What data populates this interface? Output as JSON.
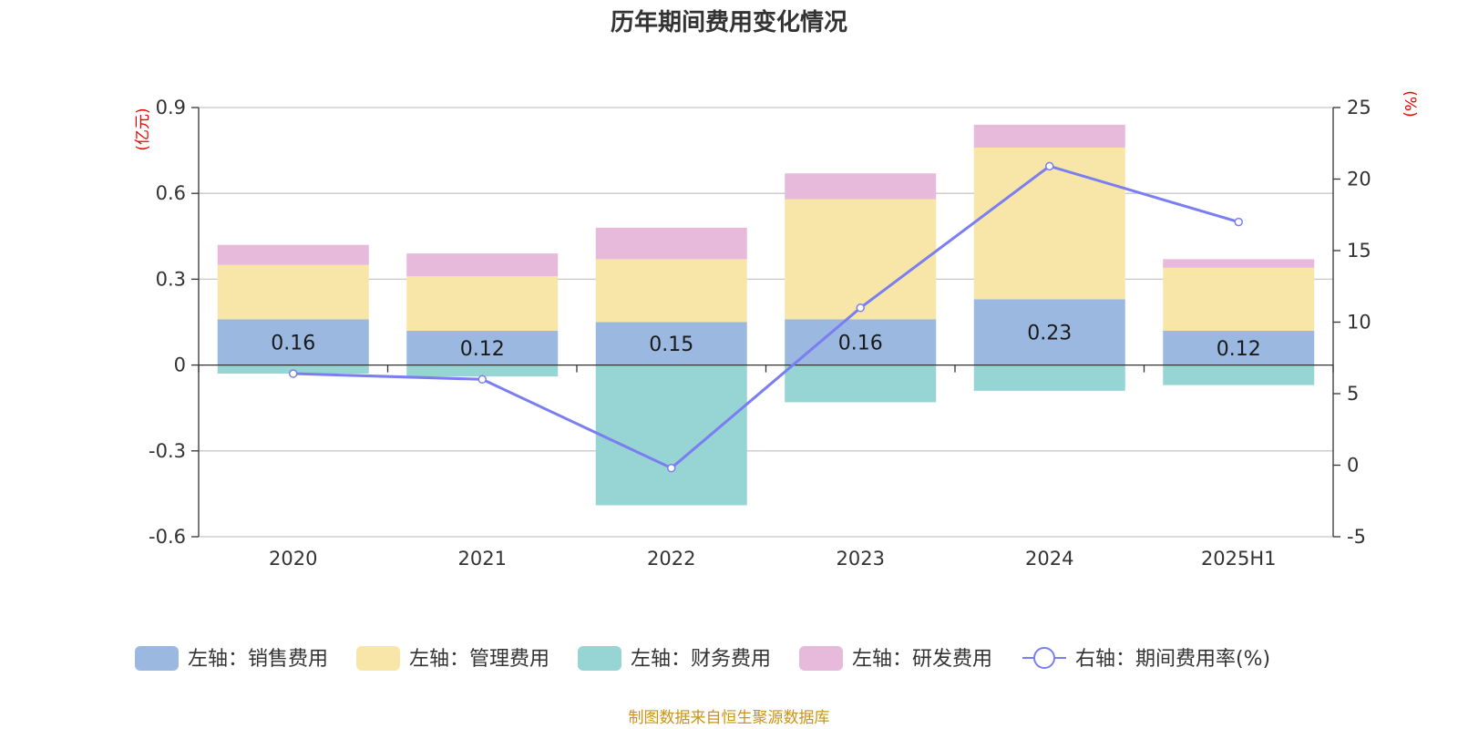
{
  "title": "历年期间费用变化情况",
  "source": "制图数据来自恒生聚源数据库",
  "chart_data": {
    "type": "bar",
    "stacked": true,
    "categories": [
      "2020",
      "2021",
      "2022",
      "2023",
      "2024",
      "2025H1"
    ],
    "left_axis": {
      "unit": "(亿元)",
      "min": -0.6,
      "max": 0.9,
      "ticks": [
        -0.6,
        -0.3,
        0,
        0.3,
        0.6,
        0.9
      ],
      "tick_labels": [
        "-0.6",
        "-0.3",
        "0",
        "0.3",
        "0.6",
        "0.9"
      ]
    },
    "right_axis": {
      "unit": "(%)",
      "min": -5,
      "max": 25,
      "ticks": [
        -5,
        0,
        5,
        10,
        15,
        20,
        25
      ],
      "tick_labels": [
        "-5",
        "0",
        "5",
        "10",
        "15",
        "20",
        "25"
      ]
    },
    "series": [
      {
        "name": "左轴：销售费用",
        "type": "bar",
        "axis": "left",
        "color": "#9bb8e0",
        "values": [
          0.16,
          0.12,
          0.15,
          0.16,
          0.23,
          0.12
        ],
        "labels": [
          "0.16",
          "0.12",
          "0.15",
          "0.16",
          "0.23",
          "0.12"
        ]
      },
      {
        "name": "左轴：管理费用",
        "type": "bar",
        "axis": "left",
        "color": "#f8e6a8",
        "values": [
          0.19,
          0.19,
          0.22,
          0.42,
          0.53,
          0.22
        ]
      },
      {
        "name": "左轴：财务费用",
        "type": "bar",
        "axis": "left",
        "color": "#97d4d4",
        "values": [
          -0.03,
          -0.04,
          -0.49,
          -0.13,
          -0.09,
          -0.07
        ]
      },
      {
        "name": "左轴：研发费用",
        "type": "bar",
        "axis": "left",
        "color": "#e7b9da",
        "values": [
          0.07,
          0.08,
          0.11,
          0.09,
          0.08,
          0.03
        ]
      },
      {
        "name": "右轴：期间费用率(%)",
        "type": "line",
        "axis": "right",
        "color": "#7b7ef0",
        "values": [
          6.4,
          6.0,
          -0.2,
          11.0,
          20.9,
          17.0
        ]
      }
    ],
    "grid": true,
    "legend_position": "bottom"
  }
}
